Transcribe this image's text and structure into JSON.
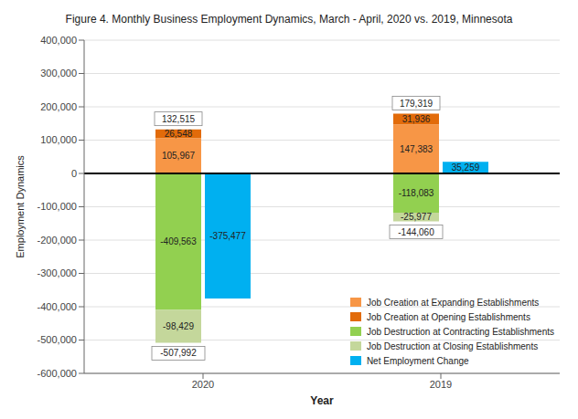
{
  "chart_data": {
    "type": "bar",
    "title": "Figure 4. Monthly Business Employment Dynamics, March - April, 2020 vs. 2019, Minnesota",
    "xlabel": "Year",
    "ylabel": "Employment Dynamics",
    "categories": [
      "2020",
      "2019"
    ],
    "stacked": true,
    "series": [
      {
        "name": "Job Creation at Expanding Establishments",
        "color": "#f79646",
        "values": [
          105967,
          147383
        ],
        "value_labels": [
          "105,967",
          "147,383"
        ]
      },
      {
        "name": "Job Creation at Opening Establishments",
        "color": "#e26b0a",
        "values": [
          26548,
          31936
        ],
        "value_labels": [
          "26,548",
          "31,936"
        ]
      },
      {
        "name": "Job Destruction at Contracting Establishments",
        "color": "#92d050",
        "values": [
          -409563,
          -118083
        ],
        "value_labels": [
          "-409,563",
          "-118,083"
        ]
      },
      {
        "name": "Job Destruction at Closing Establishments",
        "color": "#c4d79b",
        "values": [
          -98429,
          -25977
        ],
        "value_labels": [
          "-98,429",
          "-25,977"
        ]
      },
      {
        "name": "Net Employment Change",
        "color": "#00b0f0",
        "values": [
          -375477,
          35259
        ],
        "value_labels": [
          "-375,477",
          "35,259"
        ],
        "stacked": false
      }
    ],
    "ylim": [
      -600000,
      400000
    ],
    "yticks": [
      {
        "value": -600000,
        "label": "-600,000"
      },
      {
        "value": -500000,
        "label": "-500,000"
      },
      {
        "value": -400000,
        "label": "-400,000"
      },
      {
        "value": -300000,
        "label": "-300,000"
      },
      {
        "value": -200000,
        "label": "-200,000"
      },
      {
        "value": -100000,
        "label": "-100,000"
      },
      0,
      {
        "value": 100000,
        "label": "100,000"
      },
      {
        "value": 200000,
        "label": "200,000"
      },
      {
        "value": 300000,
        "label": "300,000"
      },
      {
        "value": 400000,
        "label": "400,000"
      }
    ],
    "grid": true,
    "legend": "lower right",
    "data_labels": true,
    "annotations": [
      {
        "category": "2020",
        "value": 132515,
        "label": "132,515"
      },
      {
        "category": "2020",
        "value": -507992,
        "label": "-507,992"
      },
      {
        "category": "2019",
        "value": 179319,
        "label": "179,319"
      },
      {
        "category": "2019",
        "value": -144060,
        "label": "-144,060"
      }
    ]
  }
}
